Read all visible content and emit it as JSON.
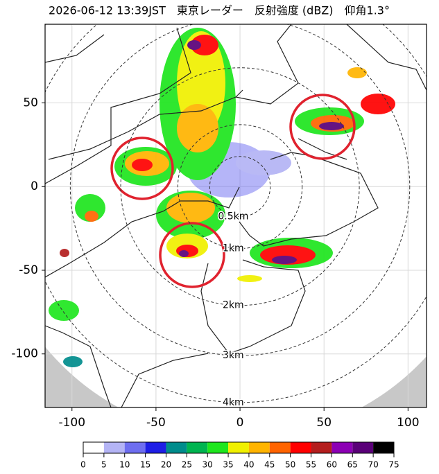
{
  "chart_data": {
    "type": "map",
    "title": "2026-06-12 13:39JST　東京レーダー　反射強度 (dBZ)　仰角1.3°",
    "xlim": [
      -116,
      111
    ],
    "ylim": [
      -132,
      97
    ],
    "xticks": [
      -100,
      -50,
      0,
      50,
      100
    ],
    "yticks": [
      50,
      0,
      -50,
      -100
    ],
    "grid": true,
    "range_rings": [
      {
        "label": "0.5km",
        "radius": 18
      },
      {
        "label": "1km",
        "radius": 37
      },
      {
        "label": "2km",
        "radius": 71
      },
      {
        "label": "3km",
        "radius": 101
      },
      {
        "label": "4km",
        "radius": 129
      }
    ],
    "colorbar": {
      "ticks": [
        0,
        5,
        10,
        15,
        20,
        25,
        30,
        35,
        40,
        45,
        50,
        55,
        60,
        65,
        70,
        75
      ],
      "colors": [
        "#ffffff",
        "#b4b4f5",
        "#6e6ef0",
        "#1e1ee6",
        "#008c8c",
        "#00b450",
        "#1ee61e",
        "#f0f000",
        "#ffb400",
        "#ff6400",
        "#ff0000",
        "#b41e1e",
        "#8c00b4",
        "#5a0078",
        "#000000"
      ]
    }
  }
}
